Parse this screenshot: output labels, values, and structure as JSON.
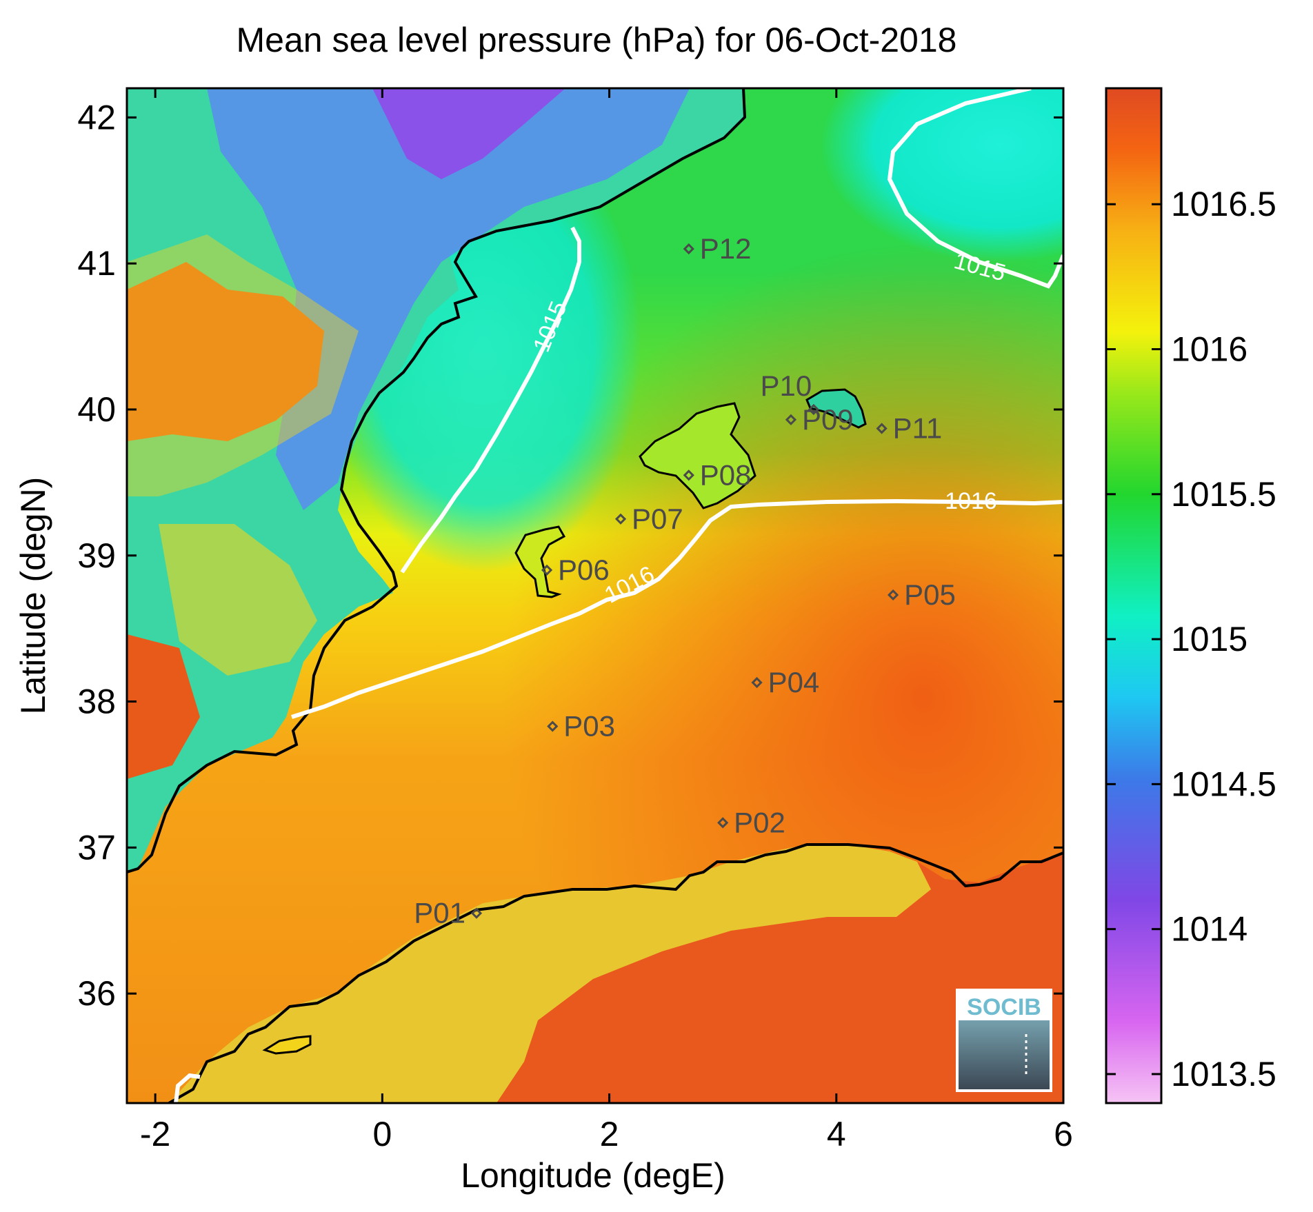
{
  "title": "Mean sea level pressure (hPa) for 06-Oct-2018",
  "xlabel": "Longitude (degE)",
  "ylabel": "Latitude (degN)",
  "x_ticks": [
    "-2",
    "0",
    "2",
    "4",
    "6"
  ],
  "y_ticks": [
    "36",
    "37",
    "38",
    "39",
    "40",
    "41",
    "42"
  ],
  "colorbar": {
    "ticks": [
      "1013.5",
      "1014",
      "1014.5",
      "1015",
      "1015.5",
      "1016",
      "1016.5"
    ],
    "range": [
      1013.4,
      1016.9
    ],
    "colors": [
      "#f4b8f1",
      "#cc55f2",
      "#7a4ae0",
      "#3d7ce8",
      "#1fd0f0",
      "#10f0a8",
      "#22d633",
      "#94e81c",
      "#f4f20c",
      "#f7b314",
      "#f46a12",
      "#e04a22"
    ]
  },
  "contours": [
    {
      "value": 1015,
      "label": "1015"
    },
    {
      "value": 1016,
      "label": "1016"
    }
  ],
  "stations": [
    {
      "id": "P01",
      "lon": 0.83,
      "lat": 36.55
    },
    {
      "id": "P02",
      "lon": 3.0,
      "lat": 37.17
    },
    {
      "id": "P03",
      "lon": 1.5,
      "lat": 37.83
    },
    {
      "id": "P04",
      "lon": 3.3,
      "lat": 38.13
    },
    {
      "id": "P05",
      "lon": 4.5,
      "lat": 38.73
    },
    {
      "id": "P06",
      "lon": 1.45,
      "lat": 38.9
    },
    {
      "id": "P07",
      "lon": 2.1,
      "lat": 39.25
    },
    {
      "id": "P08",
      "lon": 2.7,
      "lat": 39.55
    },
    {
      "id": "P09",
      "lon": 3.6,
      "lat": 39.93
    },
    {
      "id": "P10",
      "lon": 3.8,
      "lat": 40.0
    },
    {
      "id": "P11",
      "lon": 4.4,
      "lat": 39.87
    },
    {
      "id": "P12",
      "lon": 2.7,
      "lat": 41.1
    }
  ],
  "logo": {
    "text": "SOCIB"
  }
}
